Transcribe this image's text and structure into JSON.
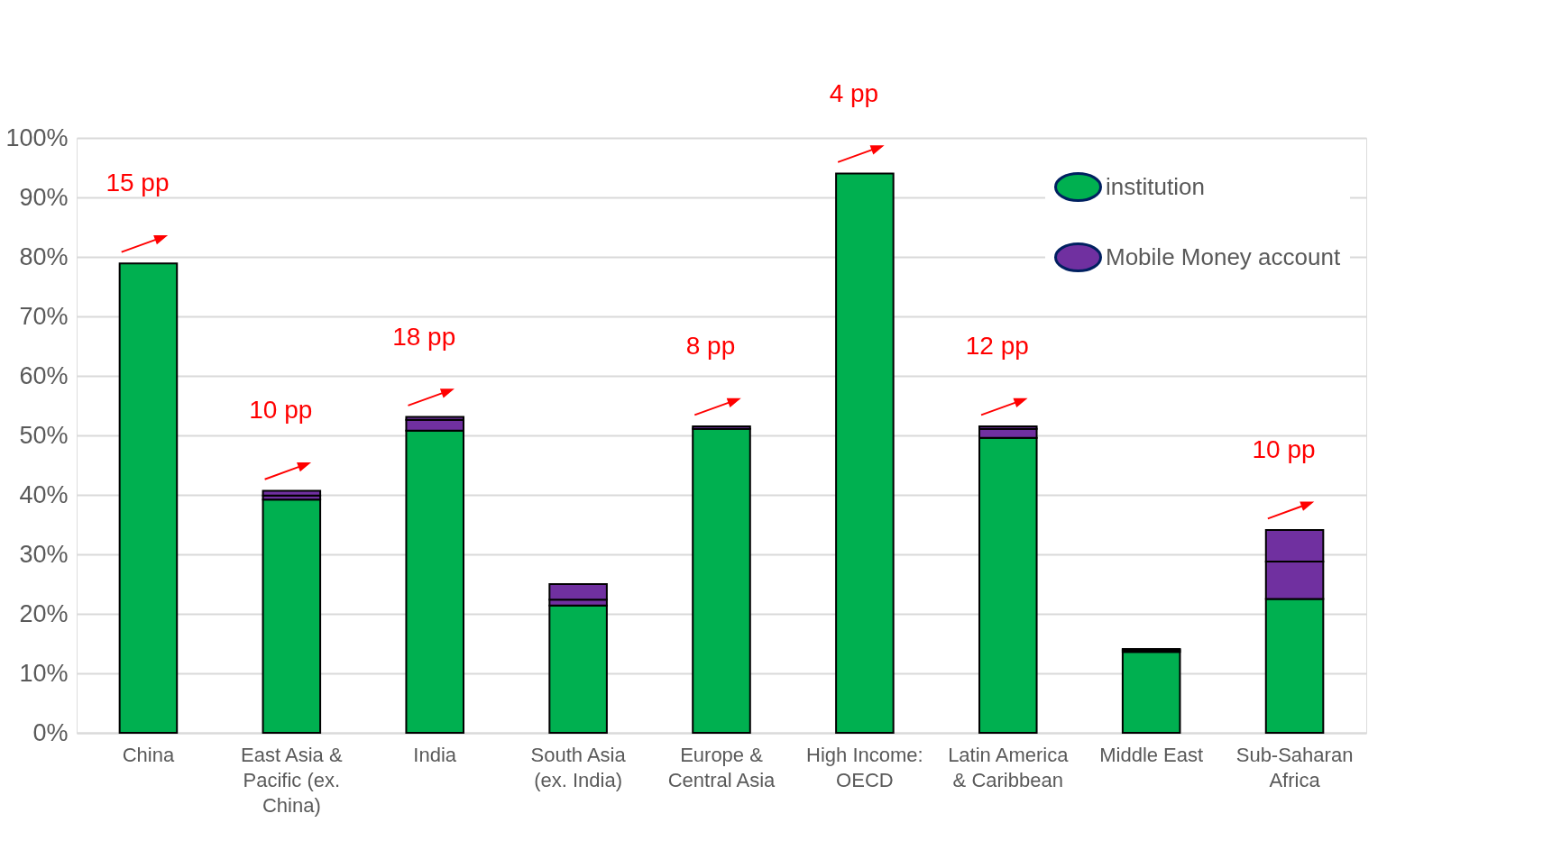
{
  "chart_data": {
    "type": "bar",
    "stacked": true,
    "categories": [
      "China",
      "East Asia & Pacific (ex. China)",
      "India",
      "South Asia (ex. India)",
      "Europe & Central Asia",
      "High Income: OECD",
      "Latin America & Caribbean",
      "Middle East",
      "Sub-Saharan Africa"
    ],
    "series": [
      {
        "name": "institution",
        "color": "#00b050",
        "values": [
          78.9,
          39.2,
          50.8,
          21.4,
          51.1,
          94.0,
          49.6,
          13.6,
          22.5
        ]
      },
      {
        "name": "Mobile Money account",
        "color": "#7030a0",
        "values": [
          0,
          0.7,
          1.8,
          1.0,
          0.4,
          0,
          1.5,
          0.3,
          6.3
        ]
      },
      {
        "color": "#7030a0",
        "values": [
          0,
          0.8,
          0.5,
          2.6,
          0,
          0,
          0.4,
          0.2,
          5.3
        ]
      }
    ],
    "ylim": [
      0,
      100
    ],
    "yticks": [
      {
        "value": 0,
        "label": "0%"
      },
      {
        "value": 10,
        "label": "10%"
      },
      {
        "value": 20,
        "label": "20%"
      },
      {
        "value": 30,
        "label": "30%"
      },
      {
        "value": 40,
        "label": "40%"
      },
      {
        "value": 50,
        "label": "50%"
      },
      {
        "value": 60,
        "label": "60%"
      },
      {
        "value": 70,
        "label": "70%"
      },
      {
        "value": 80,
        "label": "80%"
      },
      {
        "value": 90,
        "label": "90%"
      },
      {
        "value": 100,
        "label": "100%"
      }
    ],
    "grid": "y",
    "legend": "top right",
    "annotations": [
      {
        "text": "15 pp",
        "x": "China",
        "y": 78.9
      },
      {
        "text": "10 pp",
        "x": "East Asia & Pacific (ex. China)",
        "y": 40.7
      },
      {
        "text": "18 pp",
        "x": "India",
        "y": 53.1
      },
      {
        "text": "8 pp",
        "x": "Europe & Central Asia",
        "y": 51.5
      },
      {
        "text": "4 pp",
        "x": "High Income: OECD",
        "y": 94.0
      },
      {
        "text": "12 pp",
        "x": "Latin America & Caribbean",
        "y": 51.5
      },
      {
        "text": "10 pp",
        "x": "Sub-Saharan Africa",
        "y": 34.1
      }
    ]
  }
}
